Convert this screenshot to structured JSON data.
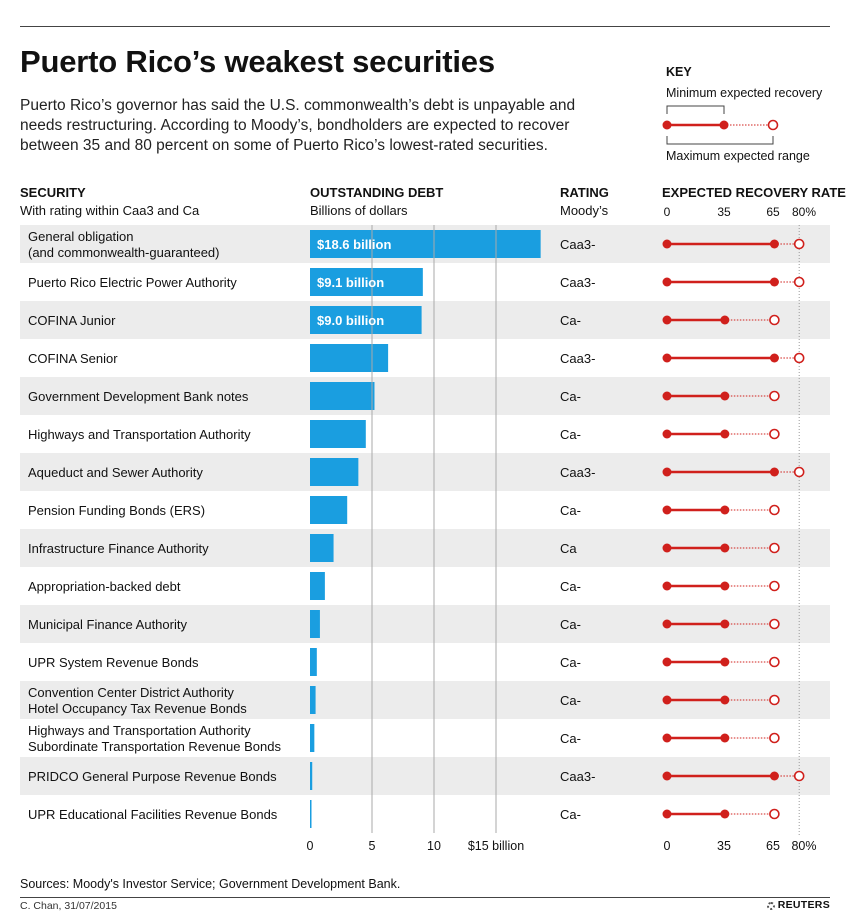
{
  "header": {
    "title": "Puerto Rico’s weakest securities",
    "subtitle": "Puerto Rico’s governor has said the U.S. commonwealth’s debt is unpayable and needs restructuring. According to Moody’s, bondholders are expected to recover between 35 and 80 percent on some of Puerto Rico’s lowest-rated securities."
  },
  "key": {
    "title": "KEY",
    "min_label": "Minimum expected recovery",
    "max_label": "Maximum expected range"
  },
  "columns": {
    "security": {
      "title": "SECURITY",
      "sub": "With rating within Caa3 and Ca"
    },
    "debt": {
      "title": "OUTSTANDING DEBT",
      "sub": "Billions of dollars"
    },
    "rating": {
      "title": "RATING",
      "sub": "Moody’s"
    },
    "recovery": {
      "title": "EXPECTED RECOVERY RATE",
      "scale_labels": [
        "0",
        "35",
        "65",
        "80%"
      ]
    }
  },
  "colors": {
    "bar": "#1a9ee0",
    "stripe": "#ececec",
    "recovery": "#d0201c",
    "gridline": "#aaaaaa"
  },
  "chart_data": [
    {
      "type": "bar",
      "title": "OUTSTANDING DEBT",
      "ylabel": "Billions of dollars",
      "xlim": [
        0,
        20
      ],
      "ticks": [
        0,
        5,
        10,
        15
      ],
      "tick_labels": [
        "0",
        "5",
        "10",
        "$15 billion"
      ],
      "categories": [
        "General obligation\n(and commonwealth-guaranteed)",
        "Puerto Rico Electric Power Authority",
        "COFINA Junior",
        "COFINA Senior",
        "Government Development Bank notes",
        "Highways and Transportation Authority",
        "Aqueduct and Sewer Authority",
        "Pension Funding Bonds (ERS)",
        "Infrastructure Finance Authority",
        "Appropriation-backed debt",
        "Municipal Finance Authority",
        "UPR System Revenue Bonds",
        "Convention Center District Authority\nHotel Occupancy Tax Revenue Bonds",
        "Highways and Transportation Authority\nSubordinate Transportation Revenue Bonds",
        "PRIDCO General Purpose Revenue Bonds",
        "UPR Educational Facilities Revenue Bonds"
      ],
      "values": [
        18.6,
        9.1,
        9.0,
        6.3,
        5.2,
        4.5,
        3.9,
        3.0,
        1.9,
        1.2,
        0.8,
        0.55,
        0.45,
        0.35,
        0.18,
        0.12
      ],
      "data_labels": [
        "$18.6 billion",
        "$9.1 billion",
        "$9.0 billion",
        "",
        "",
        "",
        "",
        "",
        "",
        "",
        "",
        "",
        "",
        "",
        "",
        ""
      ],
      "ratings": [
        "Caa3-",
        "Caa3-",
        "Ca-",
        "Caa3-",
        "Ca-",
        "Ca-",
        "Caa3-",
        "Ca-",
        "Ca",
        "Ca-",
        "Ca-",
        "Ca-",
        "Ca-",
        "Ca-",
        "Caa3-",
        "Ca-"
      ]
    },
    {
      "type": "range",
      "title": "EXPECTED RECOVERY RATE",
      "xlim": [
        0,
        80
      ],
      "ticks": [
        0,
        35,
        65,
        80
      ],
      "tick_labels": [
        "0",
        "35",
        "65",
        "80%"
      ],
      "series": [
        {
          "name": "Minimum expected recovery",
          "values": [
            65,
            65,
            35,
            65,
            35,
            35,
            65,
            35,
            35,
            35,
            35,
            35,
            35,
            35,
            65,
            35
          ]
        },
        {
          "name": "Maximum expected recovery",
          "values": [
            80,
            80,
            65,
            80,
            65,
            65,
            80,
            65,
            65,
            65,
            65,
            65,
            65,
            65,
            80,
            65
          ]
        }
      ]
    }
  ],
  "footer": {
    "source": "Sources: Moody's Investor Service; Government Development Bank.",
    "credit": "C. Chan, 31/07/2015",
    "brand": "REUTERS"
  }
}
